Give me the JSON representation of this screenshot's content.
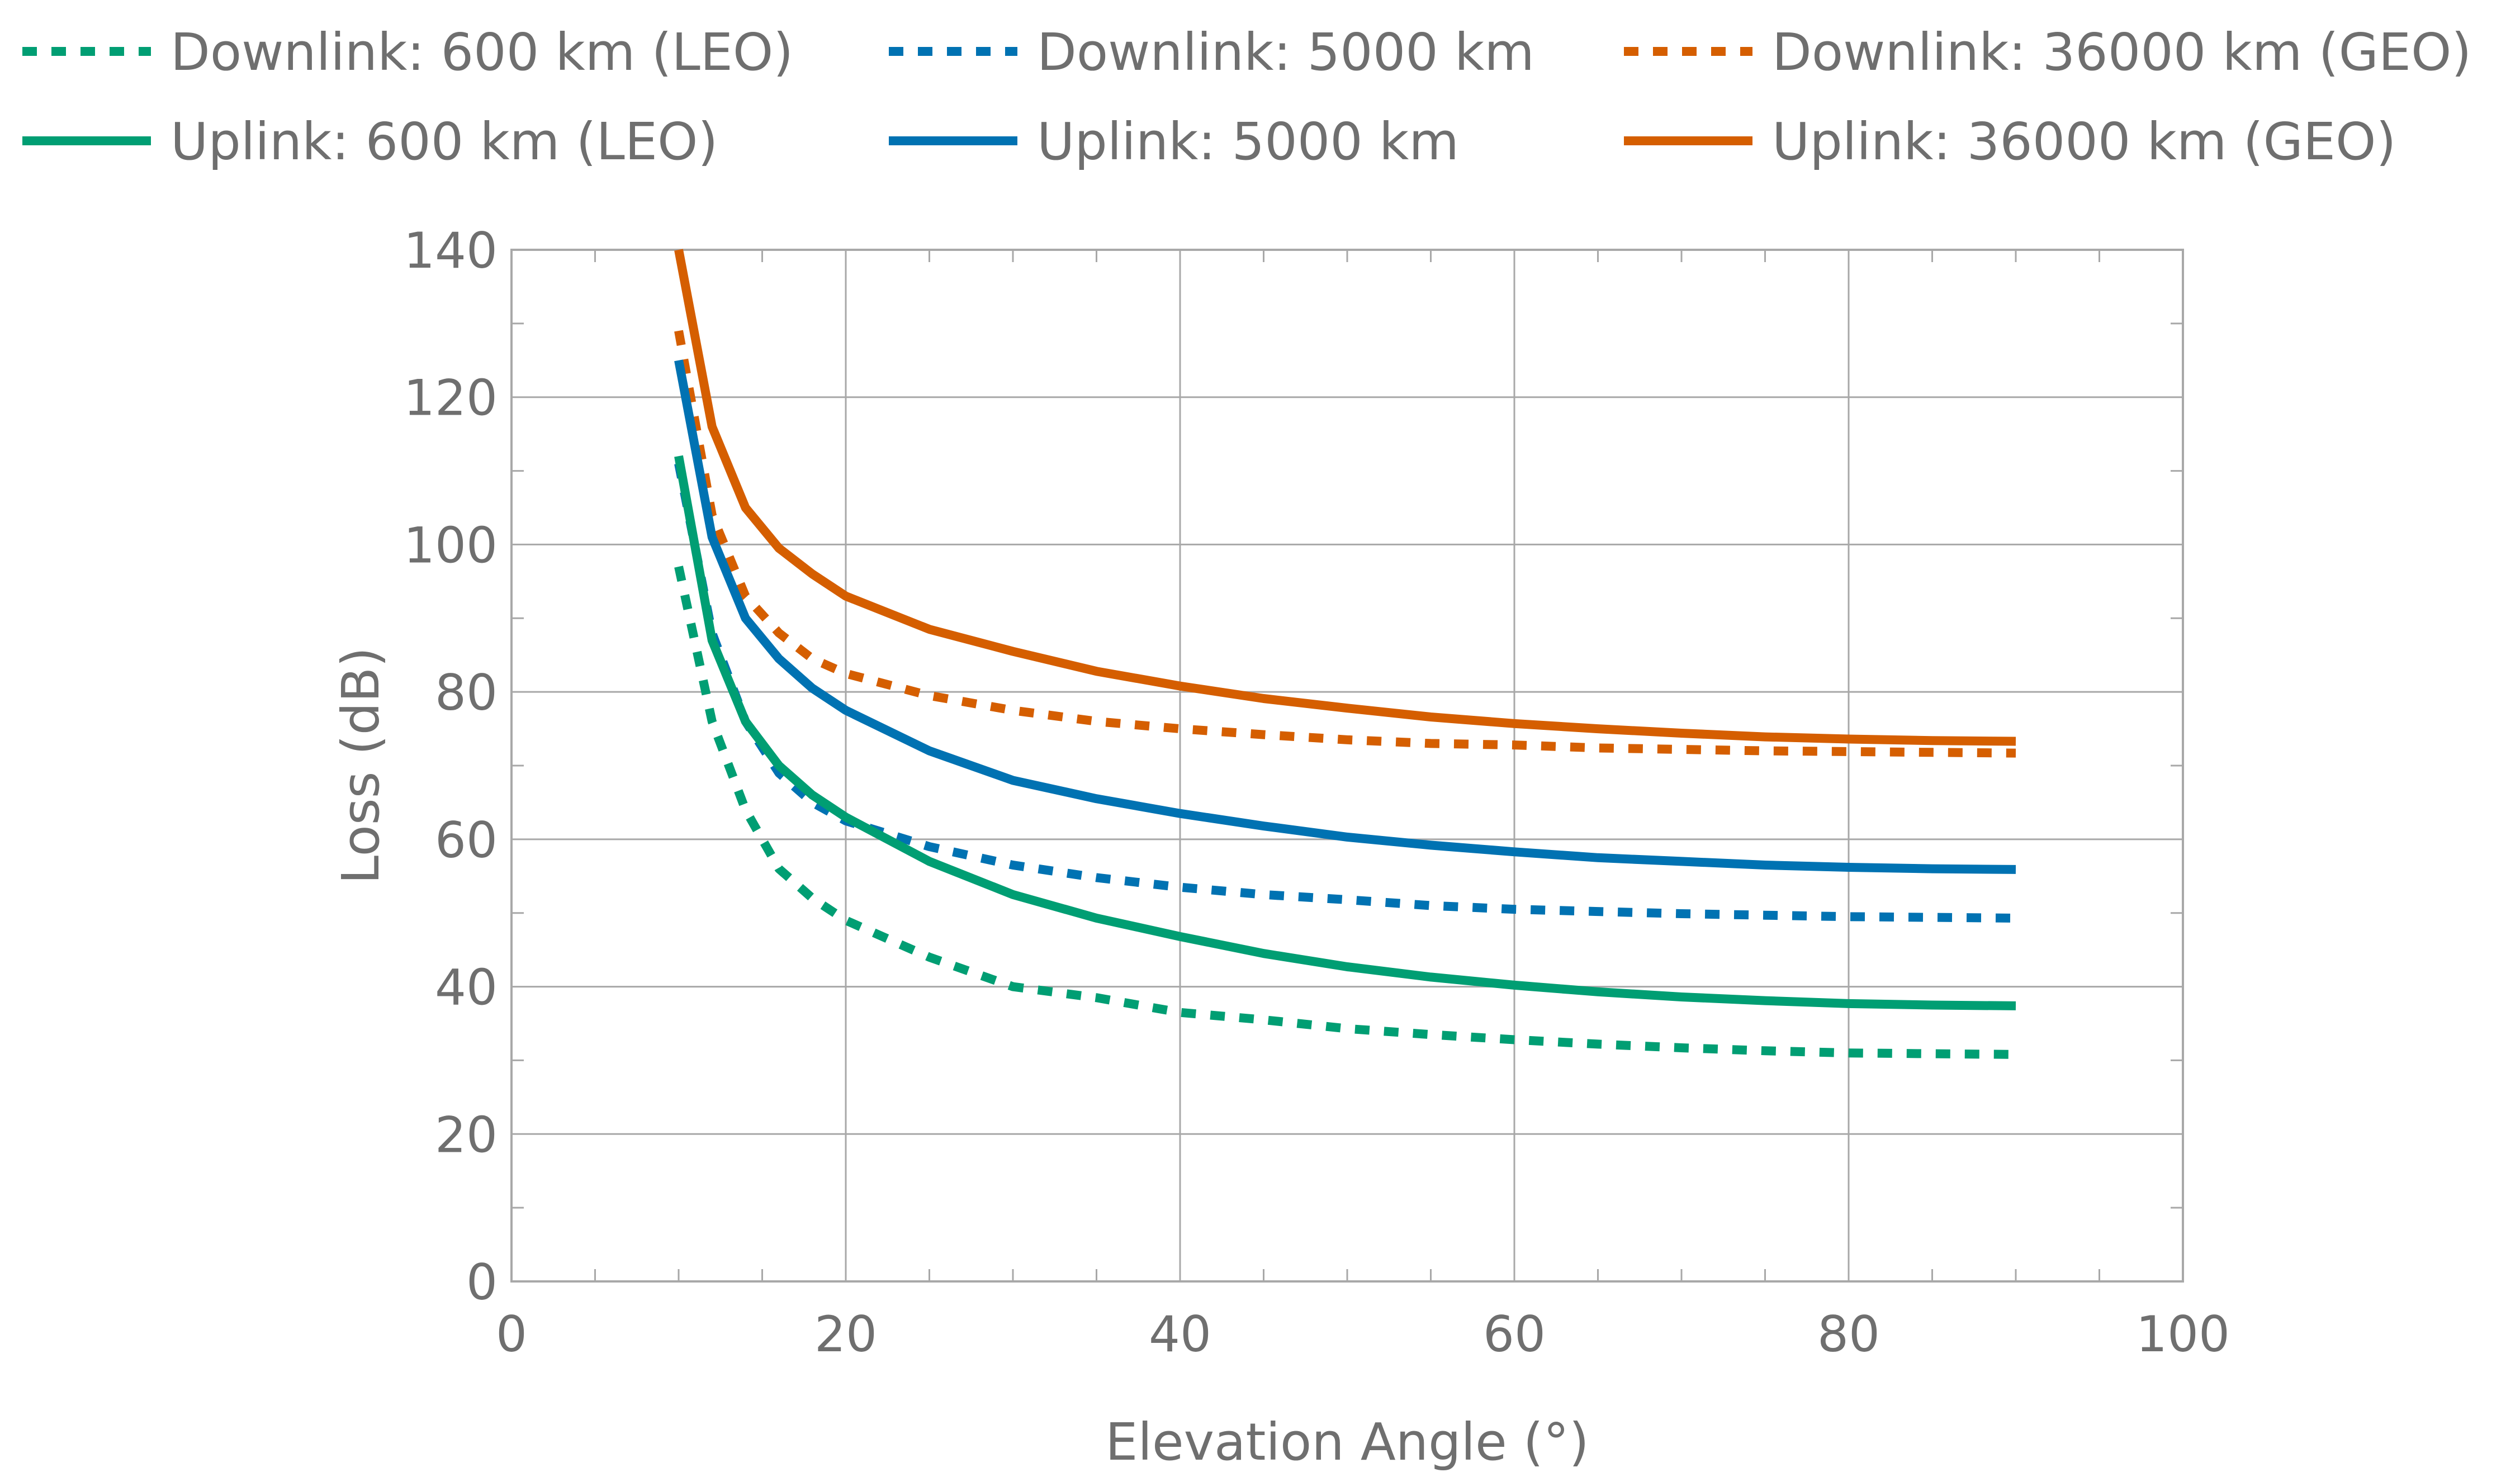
{
  "chart_data": {
    "type": "line",
    "title": "",
    "xlabel": "Elevation Angle (°)",
    "ylabel": "Loss (dB)",
    "xlim": [
      0,
      100
    ],
    "ylim": [
      0,
      140
    ],
    "xticks": [
      0,
      20,
      40,
      60,
      80,
      100
    ],
    "yticks": [
      0,
      20,
      40,
      60,
      80,
      100,
      120,
      140
    ],
    "grid": true,
    "legend_position": "top",
    "series": [
      {
        "name": "Downlink: 600 km (LEO)",
        "color": "#009E73",
        "style": "dotted",
        "x": [
          10,
          12,
          14,
          16,
          18,
          20,
          25,
          30,
          35,
          40,
          45,
          50,
          55,
          60,
          65,
          70,
          75,
          80,
          85,
          90
        ],
        "y": [
          97,
          76,
          64,
          56,
          52,
          49,
          44,
          40,
          38.5,
          36.5,
          35.5,
          34.3,
          33.5,
          32.8,
          32.2,
          31.7,
          31.3,
          31,
          30.9,
          30.8
        ]
      },
      {
        "name": "Downlink: 5000 km",
        "color": "#0072B2",
        "style": "dotted",
        "x": [
          10,
          12,
          14,
          16,
          18,
          20,
          25,
          30,
          35,
          40,
          45,
          50,
          55,
          60,
          65,
          70,
          75,
          80,
          85,
          90
        ],
        "y": [
          111,
          88,
          76,
          69,
          65,
          62.5,
          59,
          56.5,
          54.8,
          53.5,
          52.5,
          51.8,
          51,
          50.5,
          50.2,
          49.9,
          49.7,
          49.5,
          49.4,
          49.3
        ]
      },
      {
        "name": "Downlink: 36000 km (GEO)",
        "color": "#D55E00",
        "style": "dotted",
        "x": [
          10,
          12,
          14,
          16,
          18,
          20,
          25,
          30,
          35,
          40,
          45,
          50,
          55,
          60,
          65,
          70,
          75,
          80,
          85,
          90
        ],
        "y": [
          129,
          104,
          93,
          88,
          84.5,
          82.5,
          79.5,
          77.5,
          76,
          75,
          74.2,
          73.5,
          73,
          72.8,
          72.4,
          72.2,
          72,
          71.9,
          71.8,
          71.7
        ]
      },
      {
        "name": "Uplink: 600 km (LEO)",
        "color": "#009E73",
        "style": "solid",
        "x": [
          10,
          12,
          14,
          16,
          18,
          20,
          25,
          30,
          35,
          40,
          45,
          50,
          55,
          60,
          65,
          70,
          75,
          80,
          85,
          90
        ],
        "y": [
          112,
          87,
          76,
          70,
          66,
          63,
          57,
          52.5,
          49.3,
          46.8,
          44.5,
          42.7,
          41.3,
          40.2,
          39.3,
          38.6,
          38.1,
          37.7,
          37.5,
          37.4
        ]
      },
      {
        "name": "Uplink: 5000 km",
        "color": "#0072B2",
        "style": "solid",
        "x": [
          10,
          12,
          14,
          16,
          18,
          20,
          25,
          30,
          35,
          40,
          45,
          50,
          55,
          60,
          65,
          70,
          75,
          80,
          85,
          90
        ],
        "y": [
          125,
          101,
          90,
          84.5,
          80.5,
          77.5,
          72,
          68,
          65.5,
          63.5,
          61.8,
          60.3,
          59.2,
          58.3,
          57.5,
          57,
          56.5,
          56.2,
          56,
          55.9
        ]
      },
      {
        "name": "Uplink: 36000 km (GEO)",
        "color": "#D55E00",
        "style": "solid",
        "x": [
          10,
          12,
          14,
          16,
          18,
          20,
          25,
          30,
          35,
          40,
          45,
          50,
          55,
          60,
          65,
          70,
          75,
          80,
          85,
          90
        ],
        "y": [
          140,
          116,
          105,
          99.5,
          96,
          93,
          88.5,
          85.5,
          82.8,
          80.8,
          79.1,
          77.8,
          76.6,
          75.7,
          75,
          74.4,
          73.9,
          73.6,
          73.4,
          73.3
        ]
      }
    ]
  }
}
